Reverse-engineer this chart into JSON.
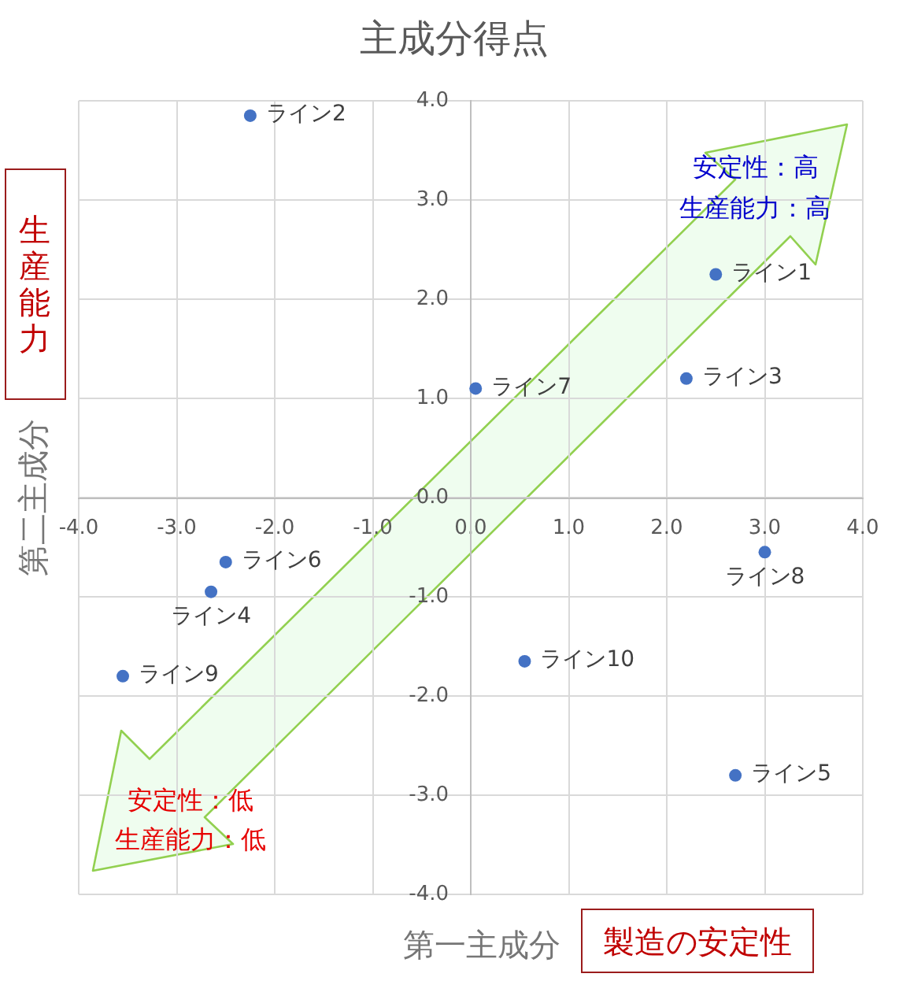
{
  "chart_data": {
    "type": "scatter",
    "title": "主成分得点",
    "xlabel": "第一主成分",
    "ylabel": "第二主成分",
    "x": [
      2.5,
      -2.25,
      2.2,
      -2.65,
      2.7,
      -2.5,
      0.05,
      3.0,
      -3.55,
      0.55
    ],
    "series": [
      {
        "color": "#4472c4",
        "values": [
          2.25,
          3.85,
          1.2,
          -0.95,
          -2.8,
          -0.65,
          1.1,
          -0.55,
          -1.8,
          -1.65
        ]
      }
    ],
    "xlim": [
      -4,
      4
    ],
    "ylim": [
      -4,
      4
    ],
    "xticks": [
      {
        "value": -4,
        "label": "-4.0"
      },
      {
        "value": -3,
        "label": "-3.0"
      },
      {
        "value": -2,
        "label": "-2.0"
      },
      {
        "value": -1,
        "label": "-1.0"
      },
      {
        "value": 0,
        "label": "0.0"
      },
      {
        "value": 1,
        "label": "1.0"
      },
      {
        "value": 2,
        "label": "2.0"
      },
      {
        "value": 3,
        "label": "3.0"
      },
      {
        "value": 4,
        "label": "4.0"
      }
    ],
    "yticks": [
      {
        "value": -4,
        "label": "-4.0"
      },
      {
        "value": -3,
        "label": "-3.0"
      },
      {
        "value": -2,
        "label": "-2.0"
      },
      {
        "value": -1,
        "label": "-1.0"
      },
      {
        "value": 0,
        "label": "0.0"
      },
      {
        "value": 1,
        "label": "1.0"
      },
      {
        "value": 2,
        "label": "2.0"
      },
      {
        "value": 3,
        "label": "3.0"
      },
      {
        "value": 4,
        "label": "4.0"
      }
    ],
    "grid": true,
    "marker": "circle",
    "annotations": [
      {
        "text": "ライン1",
        "x": 2.5,
        "y": 2.25
      },
      {
        "text": "ライン2",
        "x": -2.25,
        "y": 3.85
      },
      {
        "text": "ライン3",
        "x": 2.2,
        "y": 1.2
      },
      {
        "text": "ライン4",
        "x": -2.65,
        "y": -0.95
      },
      {
        "text": "ライン5",
        "x": 2.7,
        "y": -2.8
      },
      {
        "text": "ライン6",
        "x": -2.5,
        "y": -0.65
      },
      {
        "text": "ライン7",
        "x": 0.05,
        "y": 1.1
      },
      {
        "text": "ライン8",
        "x": 3.0,
        "y": -0.55
      },
      {
        "text": "ライン9",
        "x": -3.55,
        "y": -1.8
      },
      {
        "text": "ライン10",
        "x": 0.55,
        "y": -1.65
      },
      "安定性：高",
      "生産能力：高",
      "安定性：低",
      "生産能力：低",
      "生産能力",
      "製造の安定性"
    ]
  }
}
